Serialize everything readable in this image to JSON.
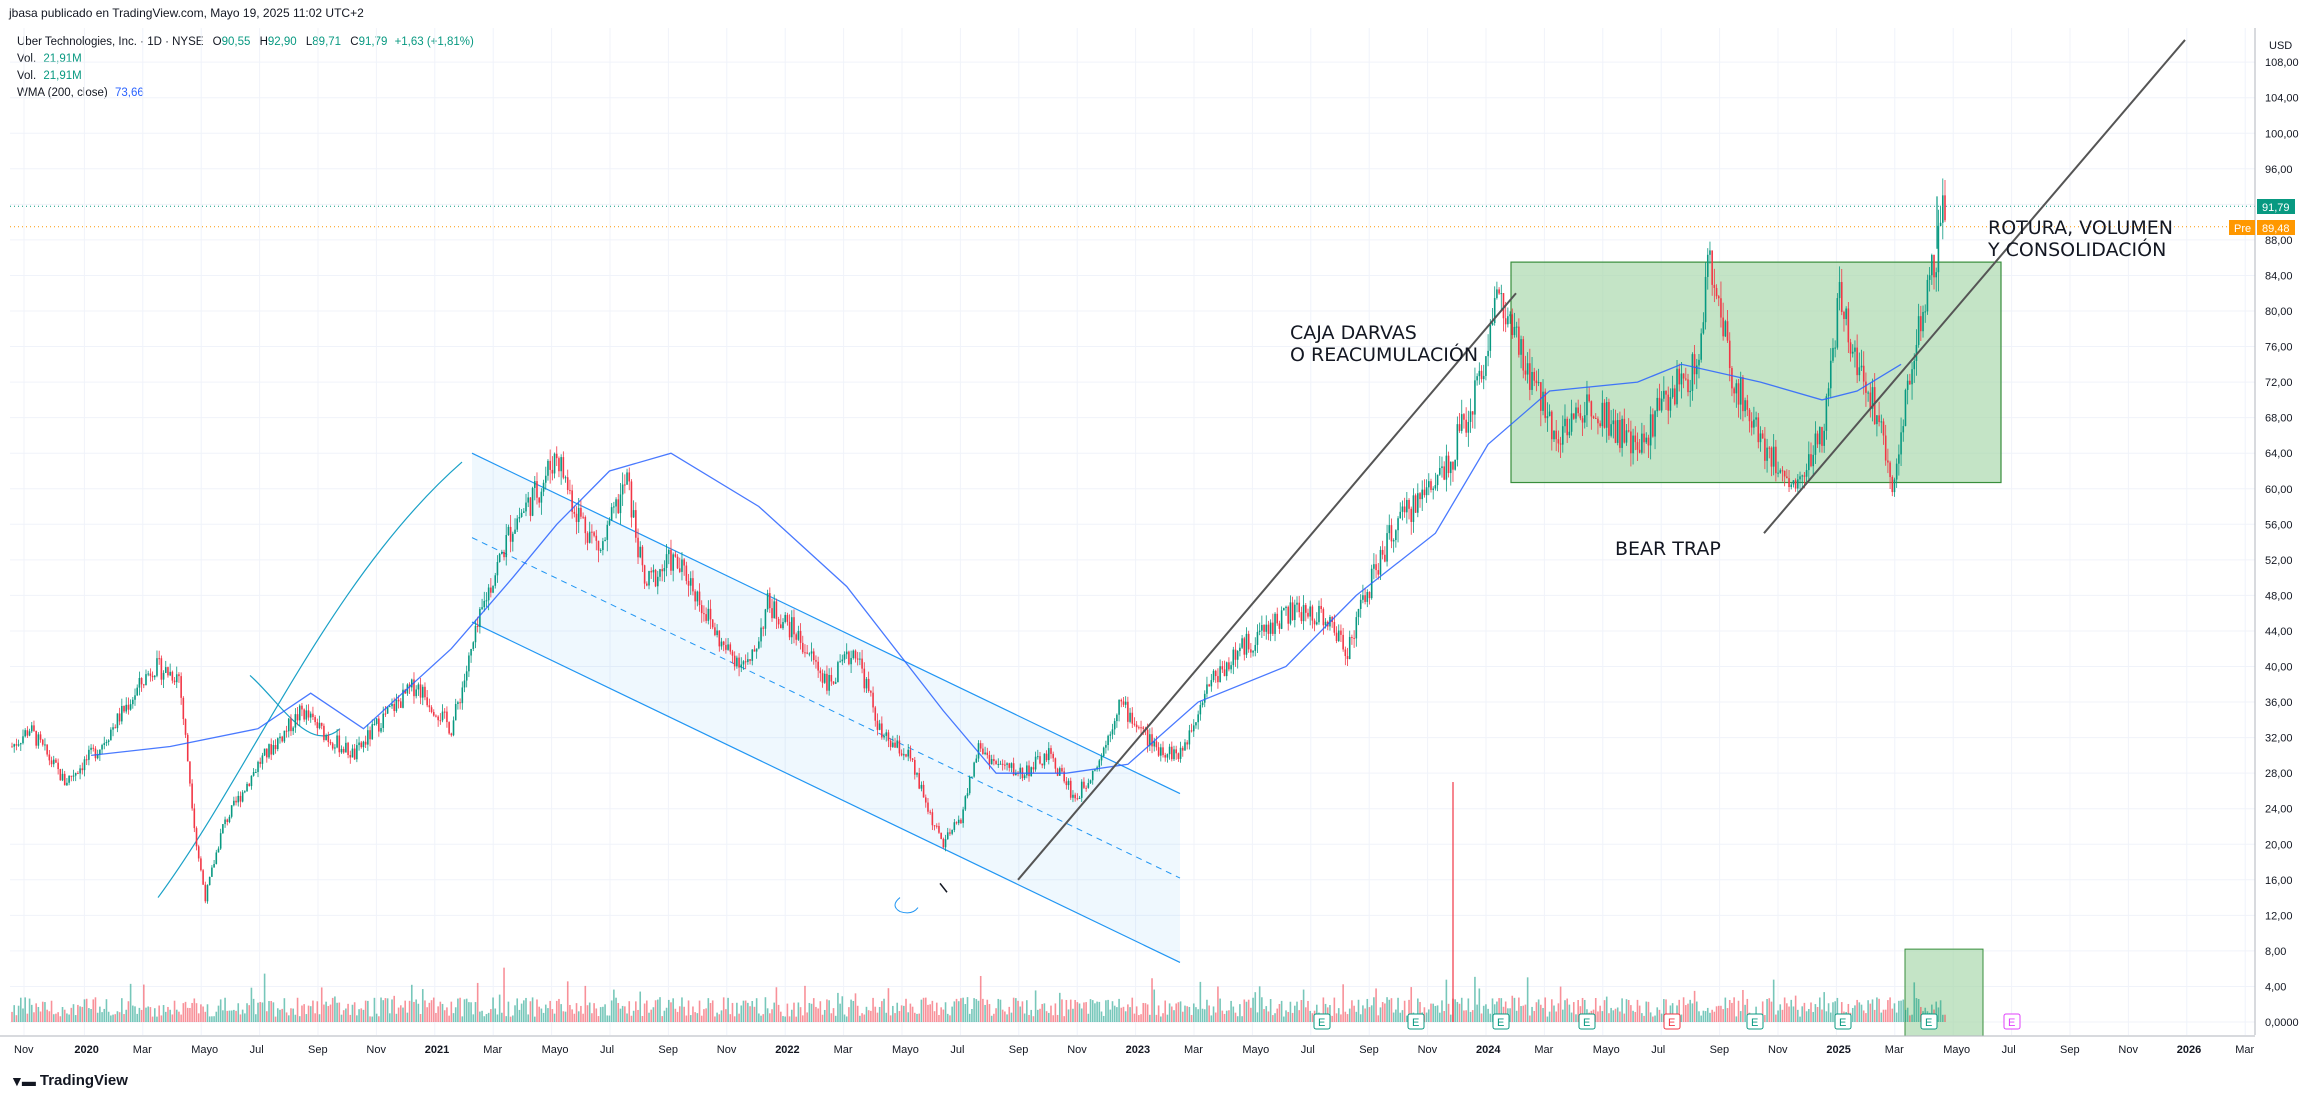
{
  "publisher": "jbasa publicado en TradingView.com, Mayo 19, 2025 11:02 UTC+2",
  "legend": {
    "title": "Uber Technologies, Inc. · 1D · NYSE",
    "o_label": "O",
    "o_value": "90,55",
    "h_label": "H",
    "h_value": "92,90",
    "l_label": "L",
    "l_value": "89,71",
    "c_label": "C",
    "c_value": "91,79",
    "change": "+1,63 (+1,81%)",
    "vol1_label": "Vol.",
    "vol1_value": "21,91M",
    "vol2_label": "Vol.",
    "vol2_value": "21,91M",
    "wma_label": "WMA (200, close)",
    "wma_value": "73,66"
  },
  "footer": {
    "brand": "TradingView"
  },
  "colors": {
    "up": "#089981",
    "down": "#f23645",
    "wma": "#2962ff",
    "box": "#a5d6a7",
    "channel": "#2196f3",
    "line": "#555555",
    "pre": "#ff9800",
    "price": "#089981"
  },
  "chart_data": {
    "type": "candlestick",
    "currency": "USD",
    "ylim": [
      -2,
      110
    ],
    "y_ticks": [
      "0,0000",
      "4,00",
      "8,00",
      "12,00",
      "16,00",
      "20,00",
      "24,00",
      "28,00",
      "32,00",
      "36,00",
      "40,00",
      "44,00",
      "48,00",
      "52,00",
      "56,00",
      "60,00",
      "64,00",
      "68,00",
      "72,00",
      "76,00",
      "80,00",
      "84,00",
      "88,00",
      "92,00",
      "96,00",
      "100,00",
      "104,00",
      "108,00"
    ],
    "x_ticks": [
      "Nov",
      "2020",
      "Mar",
      "Mayo",
      "Jul",
      "Sep",
      "Nov",
      "2021",
      "Mar",
      "Mayo",
      "Jul",
      "Sep",
      "Nov",
      "2022",
      "Mar",
      "Mayo",
      "Jul",
      "Sep",
      "Nov",
      "2023",
      "Mar",
      "Mayo",
      "Jul",
      "Sep",
      "Nov",
      "2024",
      "Mar",
      "Mayo",
      "Jul",
      "Sep",
      "Nov",
      "2025",
      "Mar",
      "Mayo",
      "Jul",
      "Sep",
      "Nov",
      "2026",
      "Mar"
    ],
    "price_path": [
      [
        0,
        31
      ],
      [
        2,
        33
      ],
      [
        6,
        27
      ],
      [
        10,
        31
      ],
      [
        16,
        40
      ],
      [
        19,
        39
      ],
      [
        21,
        20
      ],
      [
        22,
        14
      ],
      [
        24,
        22
      ],
      [
        28,
        29
      ],
      [
        33,
        35
      ],
      [
        36,
        32
      ],
      [
        39,
        30
      ],
      [
        42,
        34
      ],
      [
        46,
        38
      ],
      [
        50,
        33
      ],
      [
        54,
        48
      ],
      [
        57,
        56
      ],
      [
        60,
        60
      ],
      [
        62,
        64
      ],
      [
        64,
        58
      ],
      [
        67,
        53
      ],
      [
        70,
        61
      ],
      [
        72,
        49
      ],
      [
        75,
        52
      ],
      [
        77,
        50
      ],
      [
        81,
        42
      ],
      [
        84,
        40
      ],
      [
        86,
        47
      ],
      [
        89,
        44
      ],
      [
        93,
        38
      ],
      [
        96,
        42
      ],
      [
        99,
        32
      ],
      [
        102,
        30
      ],
      [
        105,
        22
      ],
      [
        106,
        20
      ],
      [
        108,
        23
      ],
      [
        110,
        31
      ],
      [
        112,
        29
      ],
      [
        115,
        28
      ],
      [
        118,
        30
      ],
      [
        120,
        27
      ],
      [
        121,
        25
      ],
      [
        124,
        30
      ],
      [
        126,
        36
      ],
      [
        130,
        31
      ],
      [
        133,
        30
      ],
      [
        136,
        38
      ],
      [
        140,
        42
      ],
      [
        145,
        46
      ],
      [
        149,
        46
      ],
      [
        152,
        42
      ],
      [
        154,
        48
      ],
      [
        157,
        55
      ],
      [
        161,
        60
      ],
      [
        164,
        64
      ],
      [
        167,
        72
      ],
      [
        169,
        82
      ],
      [
        172,
        74
      ],
      [
        176,
        66
      ],
      [
        180,
        70
      ],
      [
        185,
        64
      ],
      [
        188,
        70
      ],
      [
        192,
        74
      ],
      [
        193,
        86
      ],
      [
        196,
        72
      ],
      [
        200,
        64
      ],
      [
        203,
        60
      ],
      [
        206,
        66
      ],
      [
        208,
        81
      ],
      [
        211,
        72
      ],
      [
        213,
        66
      ],
      [
        214,
        61
      ],
      [
        217,
        78
      ],
      [
        219,
        86
      ],
      [
        220,
        91.8
      ]
    ],
    "wma_path": [
      [
        9,
        30
      ],
      [
        18,
        31
      ],
      [
        28,
        33
      ],
      [
        34,
        37
      ],
      [
        40,
        33
      ],
      [
        50,
        42
      ],
      [
        57,
        50
      ],
      [
        62,
        56
      ],
      [
        68,
        62
      ],
      [
        75,
        64
      ],
      [
        85,
        58
      ],
      [
        95,
        49
      ],
      [
        106,
        35
      ],
      [
        112,
        28
      ],
      [
        120,
        28
      ],
      [
        127,
        29
      ],
      [
        135,
        36
      ],
      [
        145,
        40
      ],
      [
        153,
        48
      ],
      [
        162,
        55
      ],
      [
        168,
        65
      ],
      [
        175,
        71
      ],
      [
        185,
        72
      ],
      [
        190,
        74
      ],
      [
        199,
        72
      ],
      [
        206,
        70
      ],
      [
        210,
        71
      ],
      [
        215,
        74
      ]
    ],
    "last_price": "91,79",
    "pre_price": "89,48",
    "pre_label": "Pre",
    "volume_spike": 27,
    "earnings_markers": [
      "E",
      "E",
      "E",
      "E",
      "E",
      "E",
      "E",
      "E",
      "E"
    ],
    "annotations": {
      "darvas_line1": "CAJA DARVAS",
      "darvas_line2": "O REACUMULACIÓN",
      "bear_trap": "BEAR TRAP",
      "breakout_line1": "ROTURA, VOLUMEN",
      "breakout_line2": "Y CONSOLIDACIÓN"
    }
  }
}
